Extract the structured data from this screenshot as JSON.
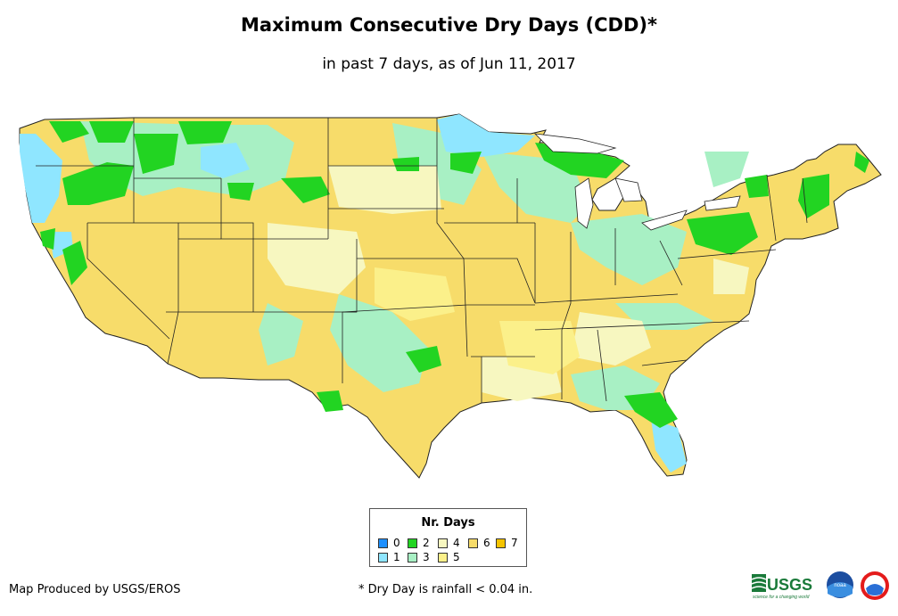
{
  "title": "Maximum Consecutive Dry Days (CDD)*",
  "subtitle": "in past 7 days, as of Jun 11, 2017",
  "legend": {
    "title": "Nr. Days",
    "items": [
      {
        "label": "0",
        "color": "#1e90ff"
      },
      {
        "label": "1",
        "color": "#8fe6ff"
      },
      {
        "label": "2",
        "color": "#22d422"
      },
      {
        "label": "3",
        "color": "#a8f0c4"
      },
      {
        "label": "4",
        "color": "#f7f7c0"
      },
      {
        "label": "5",
        "color": "#fbf08a"
      },
      {
        "label": "6",
        "color": "#f7dc6a"
      },
      {
        "label": "7",
        "color": "#f5c400"
      }
    ]
  },
  "credit": "Map Produced by USGS/EROS",
  "footnote": "* Dry Day is rainfall < 0.04 in.",
  "logos": {
    "usgs": "USGS",
    "usgs_tagline": "science for a changing world",
    "noaa": "noaa"
  },
  "colors": {
    "base": "#f7dc6a",
    "green": "#22d422",
    "light_green": "#a8f0c4",
    "cyan": "#8fe6ff",
    "pale": "#f7f7c0",
    "yellow": "#fbf08a",
    "border": "#222222"
  }
}
